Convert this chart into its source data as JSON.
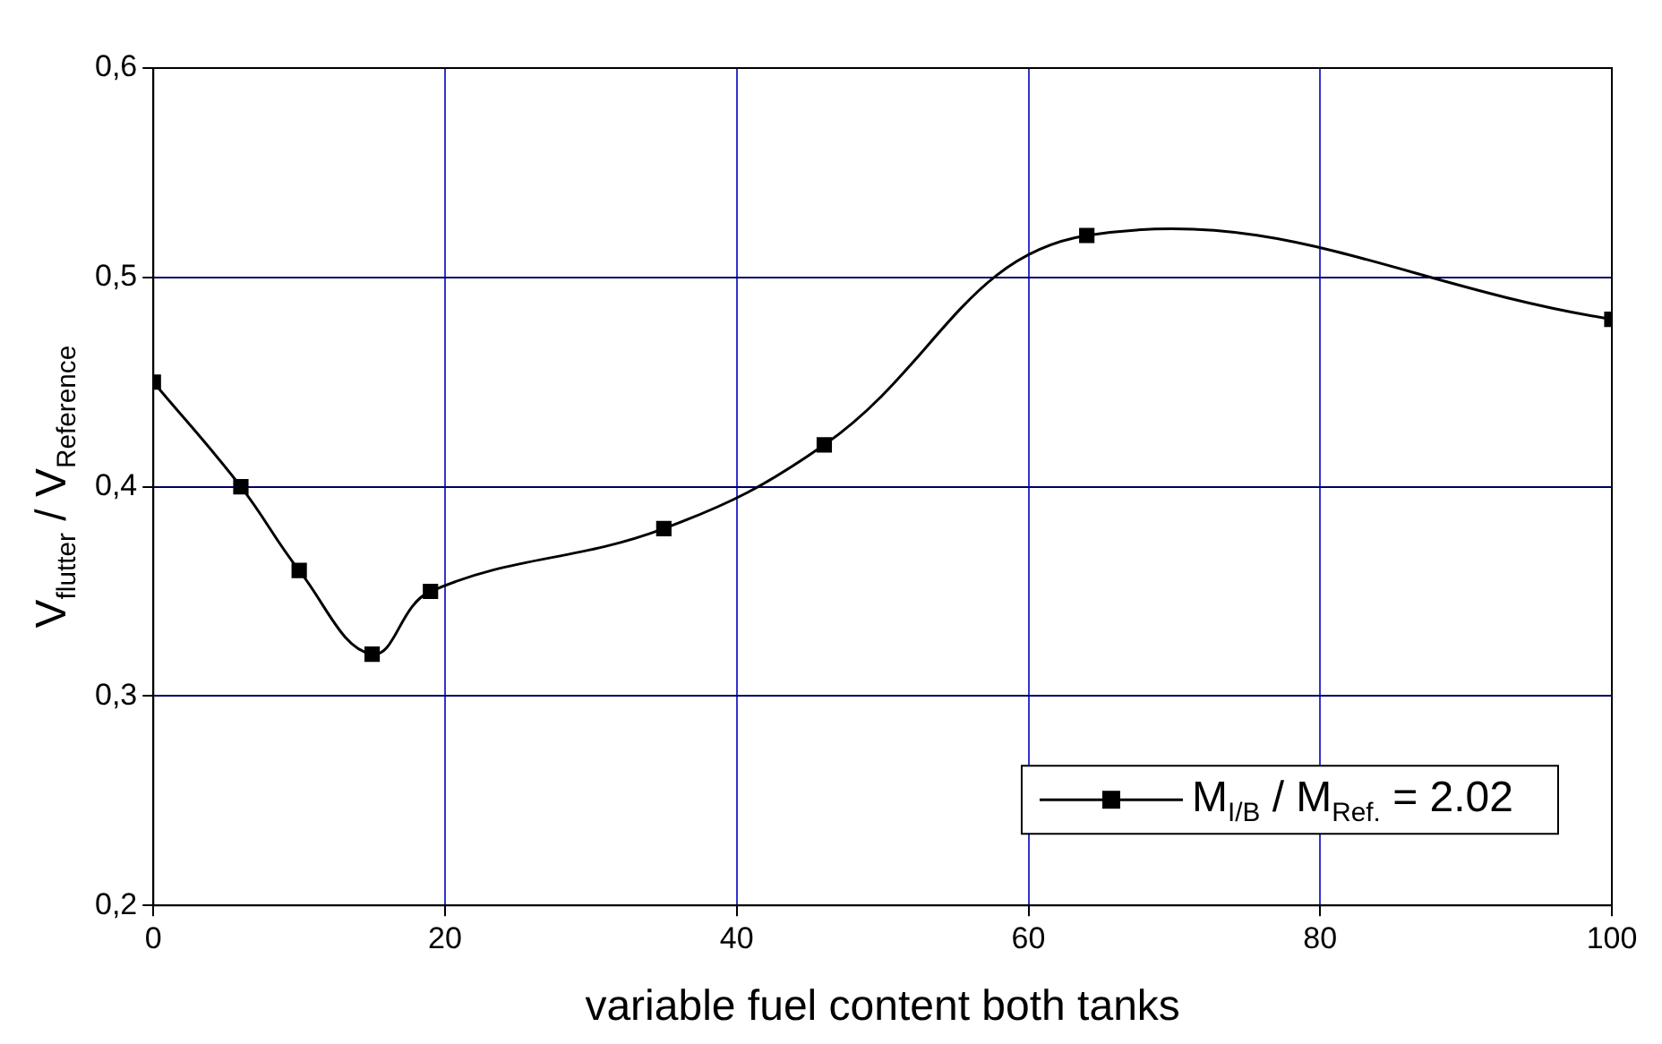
{
  "chart_data": {
    "type": "line",
    "xlabel": "variable fuel content both tanks",
    "ylabel": "V$_{flutter}$ / V$_{Reference}$",
    "x": [
      0,
      6,
      10,
      15,
      19,
      35,
      46,
      64,
      100
    ],
    "series": [
      {
        "name": "M$_{I/B}$ / M$_{Ref.}$ = 2.02",
        "color": "#000000",
        "values": [
          0.45,
          0.4,
          0.36,
          0.32,
          0.35,
          0.38,
          0.42,
          0.52,
          0.48
        ]
      }
    ],
    "xlim": [
      0,
      100
    ],
    "xticks": [
      0,
      20,
      40,
      60,
      80,
      100
    ],
    "ylim": [
      0.2,
      0.6
    ],
    "yticks": [
      {
        "value": 0.2,
        "label": "0,2"
      },
      {
        "value": 0.3,
        "label": "0,3"
      },
      {
        "value": 0.4,
        "label": "0,4"
      },
      {
        "value": 0.5,
        "label": "0,5"
      },
      {
        "value": 0.6,
        "label": "0,6"
      }
    ],
    "grid": true,
    "legend": "bottom right",
    "marker": "square",
    "line_style": "solid"
  }
}
